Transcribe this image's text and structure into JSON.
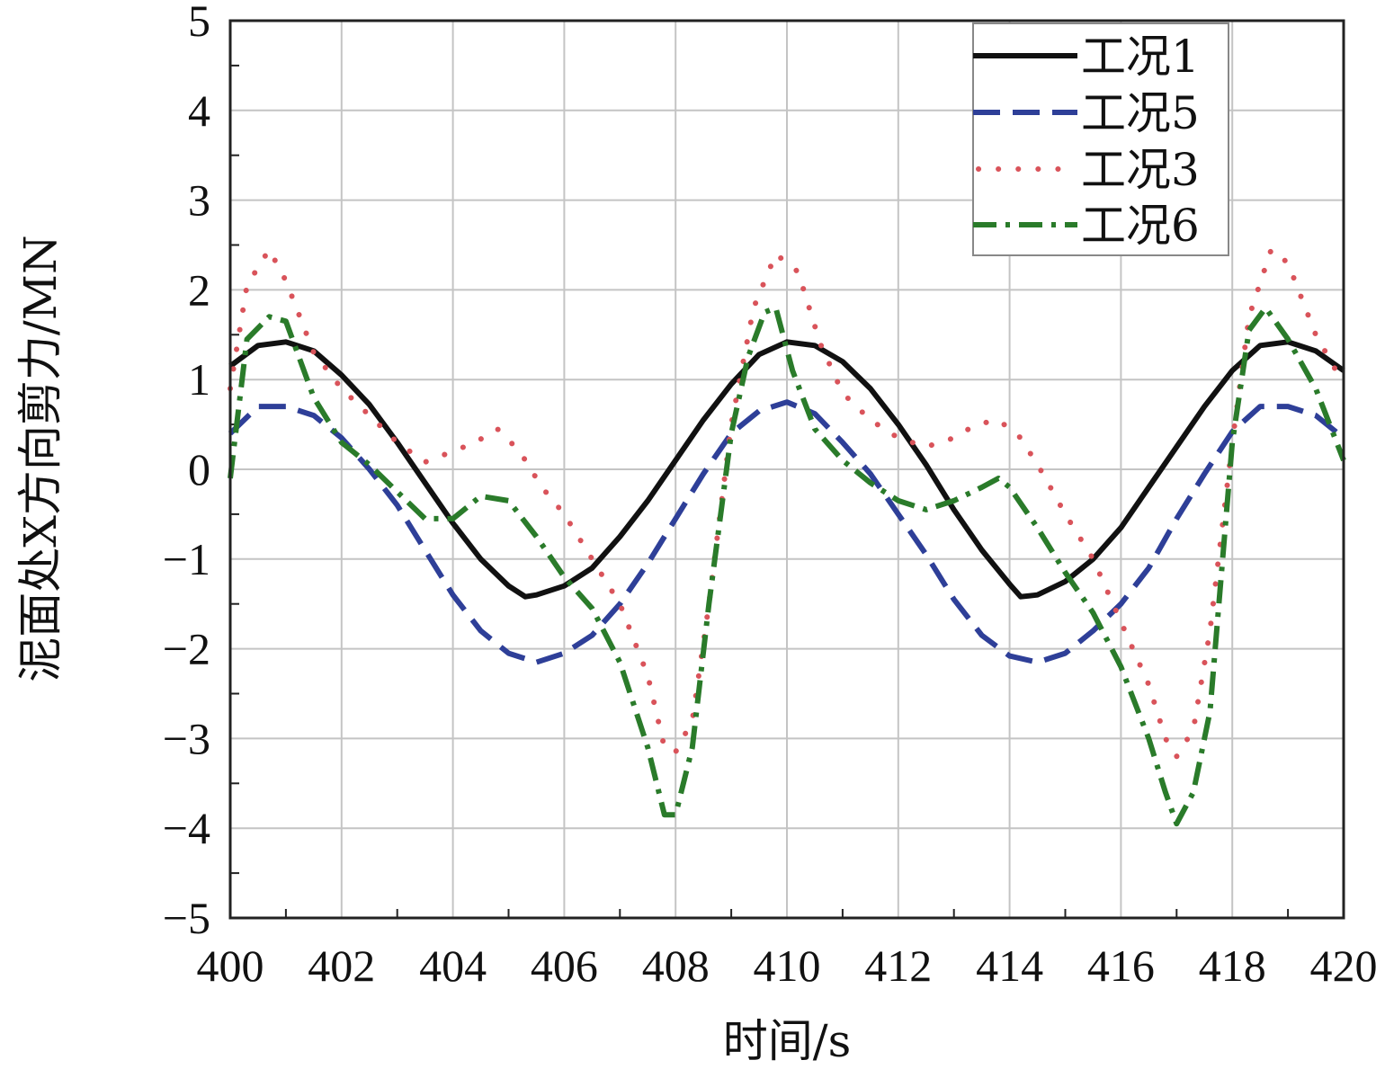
{
  "chart_data": {
    "type": "line",
    "xlabel": "时间/s",
    "ylabel": "泥面处X方向剪力/MN",
    "xlim": [
      400,
      420
    ],
    "ylim": [
      -5,
      5
    ],
    "x_ticks": [
      "400",
      "402",
      "404",
      "406",
      "408",
      "410",
      "412",
      "414",
      "416",
      "418",
      "420"
    ],
    "y_ticks": [
      "5",
      "4",
      "3",
      "2",
      "1",
      "0",
      "−1",
      "−2",
      "−3",
      "−4",
      "−5"
    ],
    "grid": true,
    "legend_position": "top-right",
    "series": [
      {
        "name": "工况1",
        "color": "#111111",
        "dash": "solid",
        "x": [
          400,
          400.5,
          401,
          401.5,
          402,
          402.5,
          403,
          403.5,
          404,
          404.5,
          405,
          405.3,
          405.5,
          406,
          406.5,
          407,
          407.5,
          408,
          408.5,
          409,
          409.5,
          410,
          410.5,
          411,
          411.5,
          412,
          412.5,
          413,
          413.5,
          414,
          414.2,
          414.5,
          415,
          415.5,
          416,
          416.5,
          417,
          417.5,
          418,
          418.5,
          419,
          419.5,
          420
        ],
        "y": [
          1.15,
          1.38,
          1.42,
          1.32,
          1.05,
          0.72,
          0.3,
          -0.15,
          -0.6,
          -1.0,
          -1.3,
          -1.42,
          -1.4,
          -1.3,
          -1.1,
          -0.75,
          -0.35,
          0.1,
          0.55,
          0.95,
          1.28,
          1.42,
          1.38,
          1.2,
          0.9,
          0.5,
          0.05,
          -0.45,
          -0.9,
          -1.28,
          -1.42,
          -1.4,
          -1.25,
          -1.0,
          -0.65,
          -0.2,
          0.25,
          0.7,
          1.1,
          1.38,
          1.42,
          1.32,
          1.1
        ]
      },
      {
        "name": "工况5",
        "color": "#2e3f98",
        "dash": "dashed",
        "x": [
          400,
          400.5,
          401,
          401.5,
          402,
          402.5,
          403,
          403.5,
          404,
          404.5,
          405,
          405.5,
          406,
          406.5,
          407,
          407.5,
          408,
          408.5,
          409,
          409.5,
          410,
          410.5,
          411,
          411.5,
          412,
          412.5,
          413,
          413.5,
          414,
          414.5,
          415,
          415.5,
          416,
          416.5,
          417,
          417.5,
          418,
          418.5,
          419,
          419.5,
          420
        ],
        "y": [
          0.4,
          0.7,
          0.7,
          0.6,
          0.35,
          0.0,
          -0.4,
          -0.9,
          -1.4,
          -1.8,
          -2.05,
          -2.15,
          -2.05,
          -1.85,
          -1.5,
          -1.05,
          -0.55,
          -0.05,
          0.4,
          0.65,
          0.75,
          0.62,
          0.3,
          -0.05,
          -0.5,
          -0.95,
          -1.45,
          -1.85,
          -2.08,
          -2.15,
          -2.05,
          -1.8,
          -1.5,
          -1.1,
          -0.55,
          -0.05,
          0.42,
          0.7,
          0.7,
          0.6,
          0.35
        ]
      },
      {
        "name": "工况3",
        "color": "#d9535a",
        "dash": "dotted",
        "x": [
          400,
          400.3,
          400.7,
          401,
          401.5,
          402,
          402.5,
          403,
          403.5,
          404,
          404.4,
          404.8,
          405.2,
          405.6,
          406,
          406.5,
          407,
          407.5,
          407.8,
          408,
          408.3,
          408.6,
          409,
          409.4,
          409.8,
          410.2,
          410.6,
          411,
          411.5,
          412,
          412.5,
          413,
          413.4,
          413.8,
          414.2,
          414.6,
          415,
          415.5,
          416,
          416.5,
          416.8,
          417,
          417.3,
          417.6,
          418,
          418.3,
          418.7,
          419,
          419.5,
          420
        ],
        "y": [
          0.9,
          2.05,
          2.45,
          2.1,
          1.3,
          0.9,
          0.6,
          0.3,
          0.08,
          0.2,
          0.3,
          0.45,
          0.2,
          -0.2,
          -0.5,
          -1.0,
          -1.5,
          -2.3,
          -3.1,
          -3.15,
          -2.8,
          -1.5,
          0.5,
          1.8,
          2.4,
          2.2,
          1.4,
          0.85,
          0.55,
          0.35,
          0.25,
          0.35,
          0.5,
          0.55,
          0.35,
          -0.05,
          -0.5,
          -1.0,
          -1.7,
          -2.4,
          -3.0,
          -3.2,
          -2.9,
          -1.8,
          0.3,
          1.7,
          2.45,
          2.3,
          1.5,
          0.95
        ]
      },
      {
        "name": "工况6",
        "color": "#2a7b2a",
        "dash": "dashdot",
        "x": [
          400,
          400.3,
          400.7,
          401,
          401.5,
          402,
          402.5,
          403,
          403.5,
          404,
          404.5,
          405,
          405.5,
          406,
          406.5,
          407,
          407.5,
          407.8,
          408,
          408.3,
          408.6,
          409,
          409.3,
          409.6,
          409.8,
          410.1,
          410.5,
          411,
          411.5,
          412,
          412.5,
          413,
          413.5,
          413.8,
          414,
          414.5,
          415,
          415.5,
          416,
          416.5,
          416.8,
          417,
          417.3,
          417.6,
          418,
          418.3,
          418.6,
          419,
          419.5,
          420
        ],
        "y": [
          -0.1,
          1.45,
          1.7,
          1.65,
          0.8,
          0.3,
          0.05,
          -0.25,
          -0.55,
          -0.55,
          -0.3,
          -0.35,
          -0.75,
          -1.2,
          -1.55,
          -2.15,
          -3.1,
          -3.85,
          -3.85,
          -3.1,
          -1.5,
          0.4,
          1.25,
          1.75,
          1.8,
          1.1,
          0.45,
          0.1,
          -0.15,
          -0.35,
          -0.45,
          -0.35,
          -0.2,
          -0.1,
          -0.2,
          -0.65,
          -1.15,
          -1.6,
          -2.2,
          -3.0,
          -3.6,
          -3.95,
          -3.6,
          -2.7,
          0.3,
          1.55,
          1.8,
          1.45,
          0.9,
          0.1
        ]
      }
    ]
  }
}
